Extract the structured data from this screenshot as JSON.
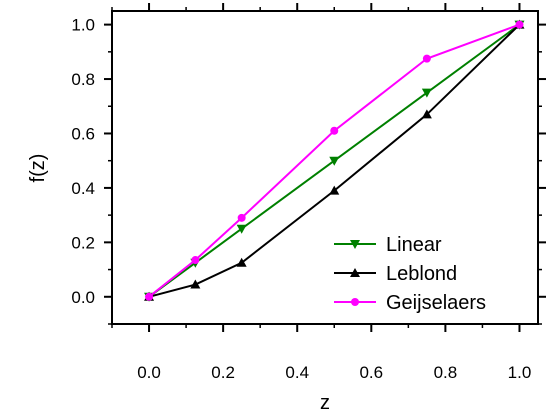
{
  "chart_data": {
    "type": "line",
    "xlabel": "z",
    "ylabel": "f(z)",
    "xlim": [
      -0.1,
      1.05
    ],
    "ylim": [
      -0.1,
      1.05
    ],
    "xticks": [
      0.0,
      0.2,
      0.4,
      0.6,
      0.8,
      1.0
    ],
    "xtick_labels": [
      "0.0",
      "0.2",
      "0.4",
      "0.6",
      "0.8",
      "1.0"
    ],
    "yticks": [
      0.0,
      0.2,
      0.4,
      0.6,
      0.8,
      1.0
    ],
    "ytick_labels": [
      "0.0",
      "0.2",
      "0.4",
      "0.6",
      "0.8",
      "1.0"
    ],
    "grid": false,
    "legend_position": "bottom-right",
    "series": [
      {
        "name": "Linear",
        "color": "#008000",
        "marker": "triangle-down",
        "x": [
          0.0,
          0.125,
          0.25,
          0.5,
          0.75,
          1.0
        ],
        "y": [
          0.0,
          0.125,
          0.25,
          0.5,
          0.75,
          1.0
        ]
      },
      {
        "name": "Leblond",
        "color": "#000000",
        "marker": "triangle-up",
        "x": [
          0.0,
          0.125,
          0.25,
          0.5,
          0.75,
          1.0
        ],
        "y": [
          0.0,
          0.045,
          0.125,
          0.39,
          0.67,
          1.0
        ]
      },
      {
        "name": "Geijselaers",
        "color": "#ff00ff",
        "marker": "circle",
        "x": [
          0.0,
          0.125,
          0.25,
          0.5,
          0.75,
          1.0
        ],
        "y": [
          0.0,
          0.135,
          0.29,
          0.61,
          0.875,
          1.0
        ]
      }
    ]
  }
}
